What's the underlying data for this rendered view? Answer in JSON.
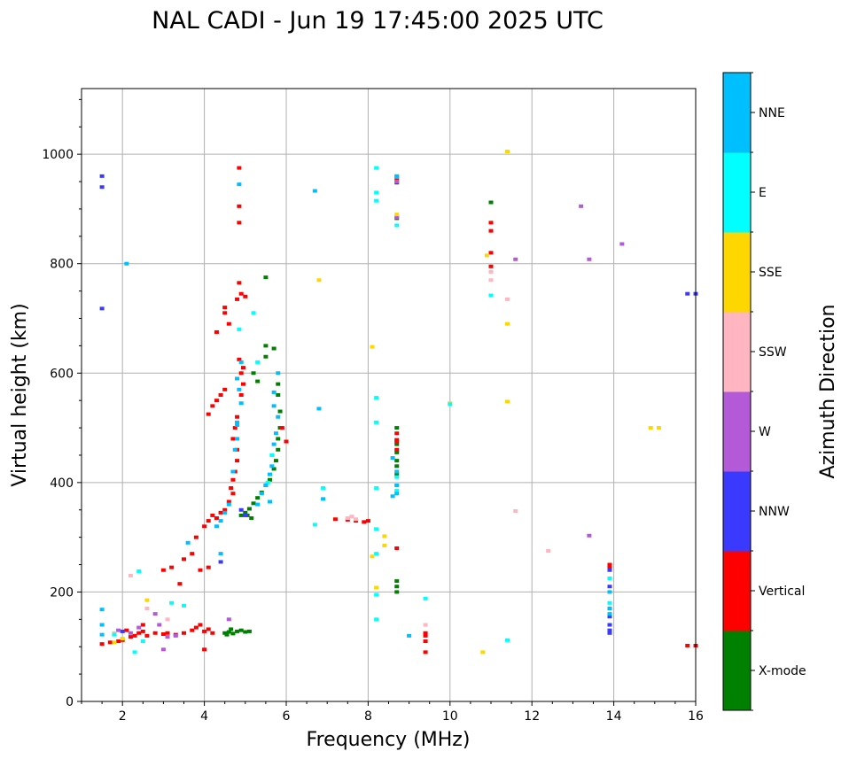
{
  "chart_data": {
    "type": "scatter",
    "title": "NAL CADI - Jun 19 17:45:00 2025 UTC",
    "xlabel": "Frequency (MHz)",
    "ylabel": "Virtual height (km)",
    "xlim": [
      1,
      16
    ],
    "ylim": [
      0,
      1120
    ],
    "xticks": [
      2,
      4,
      6,
      8,
      10,
      12,
      14,
      16
    ],
    "yticks": [
      0,
      200,
      400,
      600,
      800,
      1000
    ],
    "grid": true,
    "colorbar": {
      "label": "Azimuth Direction",
      "categories": [
        {
          "name": "X-mode",
          "color": "#008000"
        },
        {
          "name": "Vertical",
          "color": "#ff0000"
        },
        {
          "name": "NNW",
          "color": "#3a3aff"
        },
        {
          "name": "W",
          "color": "#b45ad8"
        },
        {
          "name": "SSW",
          "color": "#ffb6c1"
        },
        {
          "name": "SSE",
          "color": "#ffd700"
        },
        {
          "name": "E",
          "color": "#00ffff"
        },
        {
          "name": "NNE",
          "color": "#00bfff"
        }
      ]
    },
    "series": [
      {
        "name": "X-mode",
        "points": [
          [
            4.5,
            125
          ],
          [
            4.6,
            127
          ],
          [
            4.7,
            124
          ],
          [
            4.8,
            128
          ],
          [
            4.9,
            130
          ],
          [
            5.0,
            127
          ],
          [
            5.1,
            128
          ],
          [
            4.65,
            132
          ],
          [
            4.55,
            122
          ],
          [
            4.9,
            340
          ],
          [
            5.0,
            345
          ],
          [
            5.1,
            352
          ],
          [
            5.2,
            362
          ],
          [
            5.3,
            372
          ],
          [
            5.4,
            382
          ],
          [
            5.5,
            395
          ],
          [
            5.6,
            405
          ],
          [
            5.7,
            425
          ],
          [
            5.75,
            440
          ],
          [
            5.8,
            460
          ],
          [
            5.8,
            480
          ],
          [
            5.85,
            500
          ],
          [
            5.85,
            530
          ],
          [
            5.8,
            560
          ],
          [
            5.8,
            580
          ],
          [
            5.2,
            600
          ],
          [
            5.3,
            585
          ],
          [
            5.5,
            630
          ],
          [
            5.5,
            650
          ],
          [
            5.7,
            645
          ],
          [
            5.5,
            775
          ],
          [
            5.05,
            340
          ],
          [
            5.15,
            335
          ],
          [
            8.7,
            200
          ],
          [
            8.7,
            210
          ],
          [
            8.7,
            220
          ],
          [
            8.7,
            440
          ],
          [
            8.7,
            455
          ],
          [
            8.7,
            470
          ],
          [
            8.7,
            430
          ],
          [
            8.7,
            415
          ],
          [
            8.7,
            500
          ],
          [
            8.7,
            948
          ],
          [
            8.7,
            883
          ],
          [
            11.0,
            912
          ]
        ]
      },
      {
        "name": "Vertical",
        "points": [
          [
            1.5,
            105
          ],
          [
            1.7,
            108
          ],
          [
            1.9,
            110
          ],
          [
            2.0,
            112
          ],
          [
            2.2,
            118
          ],
          [
            2.3,
            120
          ],
          [
            2.4,
            125
          ],
          [
            2.5,
            128
          ],
          [
            2.6,
            120
          ],
          [
            2.8,
            125
          ],
          [
            3.0,
            123
          ],
          [
            3.1,
            125
          ],
          [
            3.3,
            122
          ],
          [
            3.5,
            125
          ],
          [
            3.7,
            130
          ],
          [
            3.8,
            135
          ],
          [
            4.0,
            128
          ],
          [
            4.2,
            125
          ],
          [
            4.1,
            132
          ],
          [
            3.9,
            140
          ],
          [
            2.1,
            130
          ],
          [
            2.5,
            140
          ],
          [
            3.0,
            240
          ],
          [
            3.2,
            245
          ],
          [
            3.4,
            215
          ],
          [
            3.5,
            260
          ],
          [
            3.9,
            240
          ],
          [
            4.1,
            245
          ],
          [
            3.7,
            270
          ],
          [
            3.8,
            300
          ],
          [
            4.0,
            320
          ],
          [
            4.1,
            330
          ],
          [
            4.2,
            340
          ],
          [
            4.3,
            335
          ],
          [
            4.4,
            345
          ],
          [
            4.5,
            350
          ],
          [
            4.6,
            365
          ],
          [
            4.7,
            380
          ],
          [
            4.65,
            390
          ],
          [
            4.7,
            405
          ],
          [
            4.75,
            420
          ],
          [
            4.8,
            440
          ],
          [
            4.8,
            460
          ],
          [
            4.7,
            480
          ],
          [
            4.75,
            500
          ],
          [
            4.8,
            520
          ],
          [
            4.9,
            560
          ],
          [
            4.95,
            580
          ],
          [
            4.9,
            600
          ],
          [
            4.85,
            625
          ],
          [
            4.95,
            610
          ],
          [
            4.1,
            525
          ],
          [
            4.2,
            540
          ],
          [
            4.3,
            550
          ],
          [
            4.4,
            560
          ],
          [
            4.5,
            570
          ],
          [
            4.6,
            690
          ],
          [
            4.5,
            720
          ],
          [
            4.8,
            735
          ],
          [
            4.9,
            745
          ],
          [
            4.85,
            765
          ],
          [
            4.85,
            905
          ],
          [
            4.85,
            975
          ],
          [
            4.85,
            875
          ],
          [
            4.3,
            675
          ],
          [
            4.5,
            710
          ],
          [
            5.0,
            740
          ],
          [
            6.0,
            475
          ],
          [
            5.9,
            500
          ],
          [
            4.0,
            95
          ],
          [
            7.5,
            332
          ],
          [
            7.7,
            330
          ],
          [
            7.9,
            328
          ],
          [
            8.0,
            330
          ],
          [
            7.2,
            333
          ],
          [
            8.7,
            280
          ],
          [
            8.7,
            460
          ],
          [
            8.7,
            475
          ],
          [
            8.7,
            490
          ],
          [
            8.7,
            478
          ],
          [
            8.7,
            955
          ],
          [
            9.4,
            90
          ],
          [
            9.4,
            110
          ],
          [
            9.4,
            120
          ],
          [
            9.4,
            125
          ],
          [
            11.0,
            860
          ],
          [
            11.0,
            875
          ],
          [
            11.0,
            795
          ],
          [
            11.0,
            820
          ],
          [
            13.9,
            245
          ],
          [
            13.9,
            250
          ],
          [
            15.8,
            102
          ],
          [
            16.0,
            102
          ]
        ]
      },
      {
        "name": "NNW",
        "points": [
          [
            1.5,
            960
          ],
          [
            1.5,
            940
          ],
          [
            1.5,
            718
          ],
          [
            4.4,
            255
          ],
          [
            13.9,
            125
          ],
          [
            13.9,
            130
          ],
          [
            13.9,
            140
          ],
          [
            13.9,
            155
          ],
          [
            13.9,
            170
          ],
          [
            13.9,
            210
          ],
          [
            13.9,
            240
          ],
          [
            15.8,
            745
          ],
          [
            16.0,
            745
          ],
          [
            5.0,
            340
          ],
          [
            4.9,
            350
          ],
          [
            2.0,
            128
          ]
        ]
      },
      {
        "name": "W",
        "points": [
          [
            1.9,
            130
          ],
          [
            2.2,
            125
          ],
          [
            2.8,
            160
          ],
          [
            2.9,
            140
          ],
          [
            3.0,
            95
          ],
          [
            3.1,
            118
          ],
          [
            4.6,
            150
          ],
          [
            13.2,
            905
          ],
          [
            13.4,
            808
          ],
          [
            13.4,
            303
          ],
          [
            14.2,
            836
          ],
          [
            11.6,
            808
          ],
          [
            8.7,
            885
          ],
          [
            8.7,
            950
          ],
          [
            8.7,
            958
          ],
          [
            2.4,
            135
          ],
          [
            3.3,
            120
          ]
        ]
      },
      {
        "name": "SSW",
        "points": [
          [
            2.2,
            230
          ],
          [
            7.5,
            335
          ],
          [
            7.6,
            338
          ],
          [
            7.7,
            333
          ],
          [
            11.0,
            770
          ],
          [
            11.0,
            785
          ],
          [
            11.4,
            735
          ],
          [
            11.6,
            348
          ],
          [
            12.4,
            275
          ],
          [
            9.4,
            140
          ],
          [
            2.6,
            170
          ],
          [
            3.1,
            150
          ],
          [
            1.8,
            125
          ]
        ]
      },
      {
        "name": "SSE",
        "points": [
          [
            2.6,
            185
          ],
          [
            6.8,
            770
          ],
          [
            8.1,
            648
          ],
          [
            8.1,
            265
          ],
          [
            8.2,
            208
          ],
          [
            8.4,
            302
          ],
          [
            8.4,
            285
          ],
          [
            10.0,
            545
          ],
          [
            10.8,
            90
          ],
          [
            10.9,
            815
          ],
          [
            11.4,
            1005
          ],
          [
            11.4,
            548
          ],
          [
            11.4,
            690
          ],
          [
            14.9,
            500
          ],
          [
            15.1,
            500
          ],
          [
            8.7,
            890
          ],
          [
            2.0,
            115
          ],
          [
            1.8,
            108
          ]
        ]
      },
      {
        "name": "E",
        "points": [
          [
            1.8,
            122
          ],
          [
            2.3,
            90
          ],
          [
            2.4,
            238
          ],
          [
            3.2,
            180
          ],
          [
            3.5,
            175
          ],
          [
            4.85,
            680
          ],
          [
            5.2,
            710
          ],
          [
            5.3,
            620
          ],
          [
            6.7,
            323
          ],
          [
            6.9,
            390
          ],
          [
            8.2,
            975
          ],
          [
            8.2,
            930
          ],
          [
            8.2,
            915
          ],
          [
            8.2,
            555
          ],
          [
            8.2,
            510
          ],
          [
            8.2,
            390
          ],
          [
            8.2,
            315
          ],
          [
            8.2,
            270
          ],
          [
            8.2,
            195
          ],
          [
            8.2,
            150
          ],
          [
            8.7,
            385
          ],
          [
            8.7,
            395
          ],
          [
            8.7,
            410
          ],
          [
            8.7,
            870
          ],
          [
            8.7,
            960
          ],
          [
            9.4,
            188
          ],
          [
            10.0,
            543
          ],
          [
            11.0,
            742
          ],
          [
            11.4,
            112
          ],
          [
            13.9,
            180
          ],
          [
            13.9,
            225
          ],
          [
            5.55,
            400
          ],
          [
            5.65,
            450
          ],
          [
            2.5,
            110
          ]
        ]
      },
      {
        "name": "NNE",
        "points": [
          [
            1.5,
            168
          ],
          [
            1.5,
            140
          ],
          [
            1.5,
            122
          ],
          [
            2.1,
            800
          ],
          [
            4.3,
            320
          ],
          [
            4.4,
            330
          ],
          [
            4.5,
            345
          ],
          [
            4.6,
            360
          ],
          [
            4.7,
            420
          ],
          [
            4.75,
            460
          ],
          [
            4.8,
            480
          ],
          [
            4.8,
            505
          ],
          [
            4.9,
            545
          ],
          [
            4.85,
            570
          ],
          [
            4.8,
            590
          ],
          [
            4.9,
            620
          ],
          [
            4.8,
            510
          ],
          [
            4.85,
            945
          ],
          [
            5.3,
            360
          ],
          [
            5.4,
            380
          ],
          [
            5.5,
            395
          ],
          [
            5.6,
            415
          ],
          [
            5.65,
            430
          ],
          [
            5.7,
            470
          ],
          [
            5.75,
            490
          ],
          [
            5.8,
            520
          ],
          [
            5.7,
            540
          ],
          [
            5.7,
            565
          ],
          [
            5.8,
            600
          ],
          [
            5.6,
            365
          ],
          [
            6.7,
            933
          ],
          [
            6.8,
            535
          ],
          [
            6.9,
            370
          ],
          [
            8.6,
            375
          ],
          [
            8.7,
            380
          ],
          [
            8.7,
            395
          ],
          [
            8.7,
            420
          ],
          [
            8.6,
            445
          ],
          [
            8.7,
            960
          ],
          [
            9.0,
            120
          ],
          [
            13.9,
            160
          ],
          [
            13.9,
            170
          ],
          [
            13.9,
            200
          ],
          [
            3.6,
            290
          ],
          [
            4.4,
            270
          ]
        ]
      }
    ]
  }
}
